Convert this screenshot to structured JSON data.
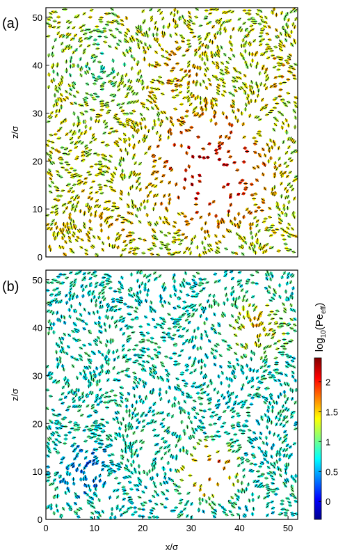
{
  "chart_data": [
    {
      "panel_label": "(a)",
      "type": "scatter",
      "title": "",
      "xlabel": "",
      "ylabel": "z/σ",
      "xlim": [
        0,
        52
      ],
      "ylim": [
        0,
        52
      ],
      "x_ticks": [],
      "y_ticks": [
        0,
        10,
        20,
        30,
        40,
        50
      ],
      "description_regions": [
        {
          "kind": "vortex",
          "cx": 11,
          "cz": 40,
          "r": 11,
          "level": 0.9
        },
        {
          "kind": "flow",
          "cx": 27,
          "cz": 38,
          "r": 9,
          "level": 1.6
        },
        {
          "kind": "flow",
          "cx": 48,
          "cz": 38,
          "r": 7,
          "level": 1.5
        },
        {
          "kind": "flow",
          "cx": 12,
          "cz": 6,
          "r": 12,
          "level": 1.5
        },
        {
          "kind": "dilute",
          "cx": 34,
          "cz": 18,
          "r": 16,
          "level": 2.3
        }
      ]
    },
    {
      "panel_label": "(b)",
      "type": "scatter",
      "title": "",
      "xlabel": "x/σ",
      "ylabel": "z/σ",
      "xlim": [
        0,
        52
      ],
      "ylim": [
        0,
        52
      ],
      "x_ticks": [
        0,
        10,
        20,
        30,
        40,
        50
      ],
      "y_ticks": [
        0,
        10,
        20,
        30,
        40,
        50
      ],
      "description_regions": [
        {
          "kind": "flow",
          "cx": 44,
          "cz": 40,
          "r": 9,
          "level": 1.6
        },
        {
          "kind": "dilute",
          "cx": 34,
          "cz": 10,
          "r": 8,
          "level": 2.2
        },
        {
          "kind": "slow",
          "cx": 8,
          "cz": 10,
          "r": 8,
          "level": 0.3
        }
      ]
    }
  ],
  "colorbar": {
    "label_base": "log",
    "label_sub": "10",
    "label_main": "(Pe",
    "label_sub2": "eff",
    "label_end": ")",
    "ticks": [
      0,
      0.5,
      1,
      1.5,
      2
    ],
    "tick_labels": [
      "0",
      "0.5",
      "1",
      "1.5",
      "2"
    ],
    "range": [
      -0.3,
      2.4
    ],
    "colormap": "jet"
  }
}
